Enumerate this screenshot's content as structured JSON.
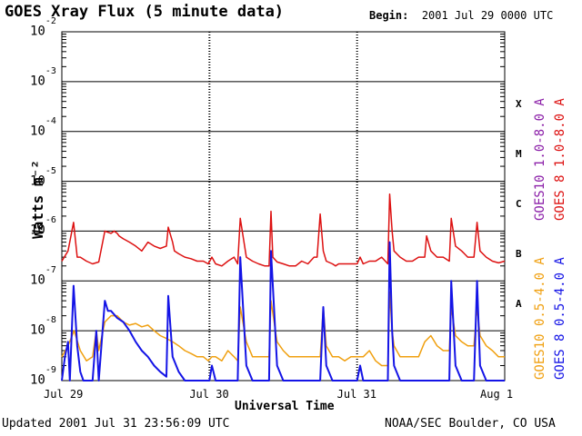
{
  "header": {
    "title": "GOES Xray Flux (5 minute data)",
    "begin_label": "Begin:",
    "begin_value": "2001 Jul 29 0000 UTC"
  },
  "footer": {
    "updated_label": "Updated",
    "updated_value": "2001 Jul 31 23:56:09 UTC",
    "credit": "NOAA/SEC Boulder, CO USA"
  },
  "flare_classes": [
    "X",
    "M",
    "C",
    "B",
    "A"
  ],
  "colors": {
    "goes10_long": "#8b1fa8",
    "goes8_long": "#dd1111",
    "goes10_short": "#f0a010",
    "goes8_short": "#1414e6"
  },
  "chart_data": {
    "type": "line",
    "xlabel": "Universal Time",
    "ylabel": "Watts m⁻²",
    "yscale": "log",
    "ylim": [
      1e-09,
      0.01
    ],
    "xlim": [
      0,
      72
    ],
    "x_unit": "hours since 2001 Jul 29 0000 UTC",
    "x_ticks": [
      {
        "x": 0,
        "label": "Jul 29"
      },
      {
        "x": 24,
        "label": "Jul 30"
      },
      {
        "x": 48,
        "label": "Jul 31"
      },
      {
        "x": 72,
        "label": "Aug 1"
      }
    ],
    "y_ticks": [
      {
        "base": "10",
        "exp": "-2"
      },
      {
        "base": "10",
        "exp": "-3"
      },
      {
        "base": "10",
        "exp": "-4"
      },
      {
        "base": "10",
        "exp": "-5"
      },
      {
        "base": "10",
        "exp": "-6"
      },
      {
        "base": "10",
        "exp": "-7"
      },
      {
        "base": "10",
        "exp": "-8"
      },
      {
        "base": "10",
        "exp": "-9"
      }
    ],
    "grid": "horizontal at each decade",
    "legend_placement": "right, vertical",
    "series": [
      {
        "name": "GOES10 1.0-8.0 A",
        "color": "#8b1fa8",
        "x": [],
        "y": []
      },
      {
        "name": "GOES 8 1.0-8.0 A",
        "color": "#dd1111",
        "x": [
          0,
          1,
          1.9,
          2.5,
          3,
          4,
          5,
          6,
          7,
          8,
          8.5,
          9,
          9.3,
          10,
          11,
          12,
          13,
          14,
          15,
          16,
          17,
          17.3,
          18,
          18.3,
          19,
          20,
          21,
          22,
          23,
          23.8,
          24.4,
          25,
          26,
          27,
          28,
          28.6,
          29,
          30,
          31,
          32,
          33,
          33.7,
          34,
          34.3,
          35,
          36,
          37,
          38,
          39,
          40,
          41,
          41.5,
          42,
          42.5,
          43,
          44,
          44.5,
          45,
          46,
          47,
          47.5,
          48,
          48.5,
          49,
          50,
          51,
          52,
          53,
          53.3,
          53.7,
          54,
          55,
          56,
          57,
          58,
          59,
          59.3,
          60,
          61,
          62,
          63,
          63.3,
          64,
          65,
          66,
          67,
          67.5,
          68,
          69,
          70,
          71,
          72
        ],
        "y": [
          2.5e-07,
          4e-07,
          1.5e-06,
          3e-07,
          3e-07,
          2.5e-07,
          2.2e-07,
          2.4e-07,
          1e-06,
          9e-07,
          1e-06,
          9e-07,
          8e-07,
          7e-07,
          6e-07,
          5e-07,
          4e-07,
          6e-07,
          5e-07,
          4.5e-07,
          5e-07,
          1.2e-06,
          6e-07,
          4e-07,
          3.5e-07,
          3e-07,
          2.8e-07,
          2.5e-07,
          2.5e-07,
          2.2e-07,
          3e-07,
          2.2e-07,
          2e-07,
          2.5e-07,
          3e-07,
          2.2e-07,
          1.8e-06,
          3e-07,
          2.5e-07,
          2.2e-07,
          2e-07,
          2e-07,
          2.5e-06,
          3e-07,
          2.4e-07,
          2.2e-07,
          2e-07,
          2e-07,
          2.5e-07,
          2.2e-07,
          3e-07,
          3e-07,
          2.2e-06,
          4e-07,
          2.5e-07,
          2.2e-07,
          2e-07,
          2.2e-07,
          2.2e-07,
          2.2e-07,
          2.2e-07,
          2.2e-07,
          3e-07,
          2.2e-07,
          2.5e-07,
          2.5e-07,
          3e-07,
          2.2e-07,
          5.5e-06,
          1e-06,
          4e-07,
          3e-07,
          2.5e-07,
          2.5e-07,
          3e-07,
          3e-07,
          8e-07,
          4e-07,
          3e-07,
          3e-07,
          2.5e-07,
          1.8e-06,
          5e-07,
          4e-07,
          3e-07,
          3e-07,
          1.5e-06,
          4e-07,
          3e-07,
          2.5e-07,
          2.3e-07,
          2.5e-07
        ]
      },
      {
        "name": "GOES10 0.5-4.0 A",
        "color": "#f0a010",
        "x": [
          0,
          1,
          2,
          3,
          4,
          5,
          5.6,
          6,
          7,
          8,
          9,
          10,
          11,
          12,
          13,
          14,
          15,
          16,
          17,
          18,
          19,
          20,
          21,
          22,
          23,
          23.8,
          24.4,
          25,
          26,
          27,
          28,
          28.6,
          29,
          30,
          31,
          32,
          33,
          33.7,
          34,
          35,
          36,
          37,
          38,
          39,
          40,
          41,
          42,
          42.5,
          43,
          44,
          45,
          46,
          47,
          48,
          49,
          50,
          51,
          52,
          53,
          53.3,
          53.7,
          54,
          55,
          56,
          57,
          58,
          59,
          60,
          61,
          62,
          63,
          63.3,
          64,
          65,
          66,
          67,
          67.5,
          68,
          69,
          70,
          71,
          72
        ],
        "y": [
          3e-09,
          5e-09,
          1e-08,
          4e-09,
          2.5e-09,
          3e-09,
          1e-08,
          4e-09,
          1.5e-08,
          2e-08,
          2e-08,
          1.5e-08,
          1.3e-08,
          1.4e-08,
          1.2e-08,
          1.3e-08,
          1e-08,
          8e-09,
          7e-09,
          6e-09,
          5e-09,
          4e-09,
          3.5e-09,
          3e-09,
          3e-09,
          2.5e-09,
          3e-09,
          3e-09,
          2.5e-09,
          4e-09,
          3e-09,
          2.5e-09,
          3e-08,
          6e-09,
          3e-09,
          3e-09,
          3e-09,
          3e-09,
          4e-08,
          6e-09,
          4e-09,
          3e-09,
          3e-09,
          3e-09,
          3e-09,
          3e-09,
          3e-09,
          3e-08,
          5e-09,
          3e-09,
          3e-09,
          2.5e-09,
          3e-09,
          3e-09,
          3e-09,
          4e-09,
          2.5e-09,
          2e-09,
          2e-09,
          6e-08,
          1e-08,
          5e-09,
          3e-09,
          3e-09,
          3e-09,
          3e-09,
          6e-09,
          8e-09,
          5e-09,
          4e-09,
          4e-09,
          3e-08,
          8e-09,
          6e-09,
          5e-09,
          5e-09,
          3e-08,
          8e-09,
          5e-09,
          4e-09,
          3e-09,
          3e-09
        ]
      },
      {
        "name": "GOES 8 0.5-4.0 A",
        "color": "#1414e6",
        "x": [
          0,
          0.5,
          1,
          1.3,
          1.9,
          2.5,
          3,
          3.5,
          4,
          5,
          5.6,
          6,
          7,
          7.5,
          8,
          9,
          10,
          11,
          12,
          13,
          14,
          15,
          16,
          17,
          17.3,
          18,
          19,
          20,
          21,
          22,
          23,
          24,
          24.4,
          25,
          26,
          27,
          28,
          28.6,
          29,
          30,
          31,
          32,
          33,
          33.7,
          34,
          35,
          36,
          37,
          38,
          39,
          40,
          41,
          42,
          42.5,
          43,
          44,
          45,
          46,
          47,
          47.5,
          48,
          48.5,
          49,
          50,
          51,
          52,
          53,
          53.3,
          53.7,
          54,
          55,
          56,
          57,
          58,
          59,
          60,
          61,
          62,
          63,
          63.3,
          64,
          65,
          66,
          67,
          67.5,
          68,
          69,
          70,
          71,
          72
        ],
        "y": [
          1e-09,
          3e-09,
          6e-09,
          1e-09,
          8e-08,
          5e-09,
          1.5e-09,
          1e-09,
          1e-09,
          1e-09,
          1e-08,
          1e-09,
          4e-08,
          2.5e-08,
          2.5e-08,
          1.8e-08,
          1.5e-08,
          1e-08,
          6e-09,
          4e-09,
          3e-09,
          2e-09,
          1.5e-09,
          1.2e-09,
          5e-08,
          3e-09,
          1.5e-09,
          1e-09,
          1e-09,
          1e-09,
          1e-09,
          1e-09,
          2e-09,
          1e-09,
          1e-09,
          1e-09,
          1e-09,
          1e-09,
          3e-07,
          2e-09,
          1e-09,
          1e-09,
          1e-09,
          1e-09,
          4e-07,
          2e-09,
          1e-09,
          1e-09,
          1e-09,
          1e-09,
          1e-09,
          1e-09,
          1e-09,
          3e-08,
          2e-09,
          1e-09,
          1e-09,
          1e-09,
          1e-09,
          1e-09,
          1e-09,
          2e-09,
          1e-09,
          1e-09,
          1e-09,
          1e-09,
          1e-09,
          6e-07,
          1e-08,
          2e-09,
          1e-09,
          1e-09,
          1e-09,
          1e-09,
          1e-09,
          1e-09,
          1e-09,
          1e-09,
          1e-09,
          1e-07,
          2e-09,
          1e-09,
          1e-09,
          1e-09,
          1e-07,
          2e-09,
          1e-09,
          1e-09,
          1e-09,
          1e-09
        ]
      }
    ]
  }
}
